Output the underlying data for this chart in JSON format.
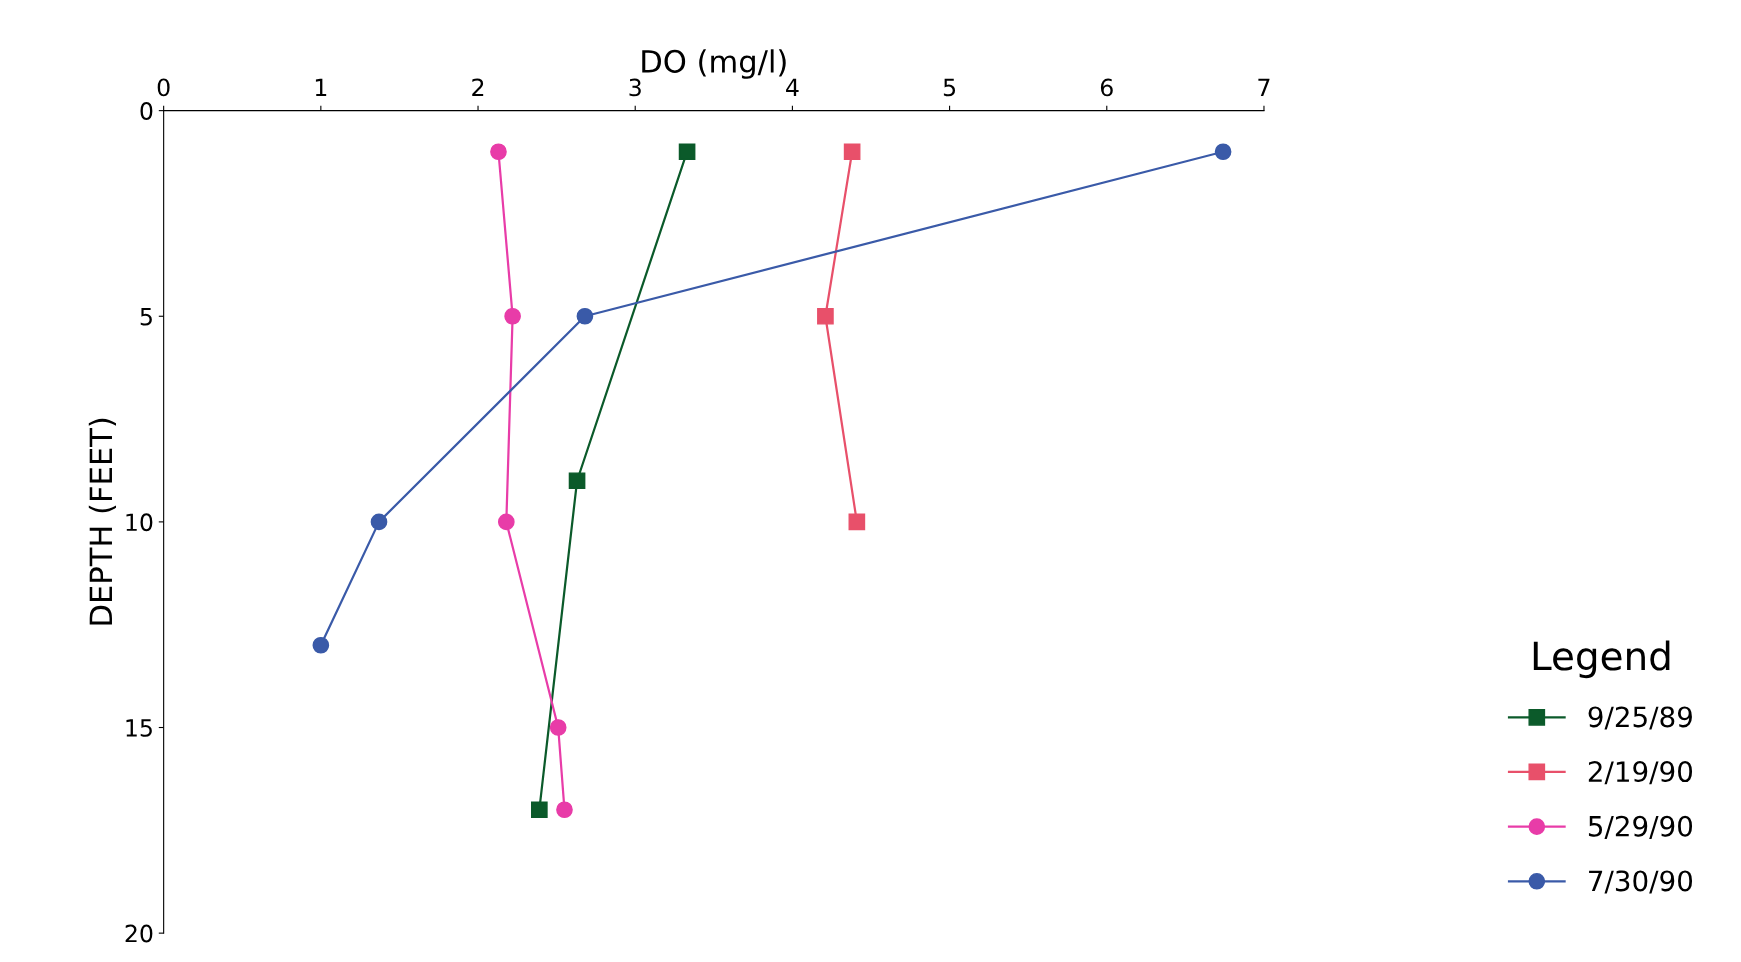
{
  "chart_data": {
    "type": "line",
    "xlabel": "DO (mg/l)",
    "ylabel": "DEPTH (FEET)",
    "legend_title": "Legend",
    "xlim": [
      0,
      7
    ],
    "xticks": [
      0,
      1,
      2,
      3,
      4,
      5,
      6,
      7
    ],
    "ylim": [
      20,
      0
    ],
    "yticks": [
      0,
      5,
      10,
      15,
      20
    ],
    "grid": false,
    "legend": "right",
    "series": [
      {
        "name": "9/25/89",
        "color": "#0b5a2a",
        "marker": "square",
        "x": [
          3.33,
          2.63,
          2.39
        ],
        "values": [
          1,
          9,
          17
        ]
      },
      {
        "name": "2/19/90",
        "color": "#e8506a",
        "marker": "square",
        "x": [
          4.38,
          4.21,
          4.41
        ],
        "values": [
          1,
          5,
          10
        ]
      },
      {
        "name": "5/29/90",
        "color": "#e83ca8",
        "marker": "circle",
        "x": [
          2.13,
          2.22,
          2.18,
          2.51,
          2.55
        ],
        "values": [
          1,
          5,
          10,
          15,
          17
        ]
      },
      {
        "name": "7/30/90",
        "color": "#3a5aa8",
        "marker": "circle",
        "x": [
          6.74,
          2.68,
          1.37,
          1.0
        ],
        "values": [
          1,
          5,
          10,
          13
        ]
      }
    ]
  }
}
